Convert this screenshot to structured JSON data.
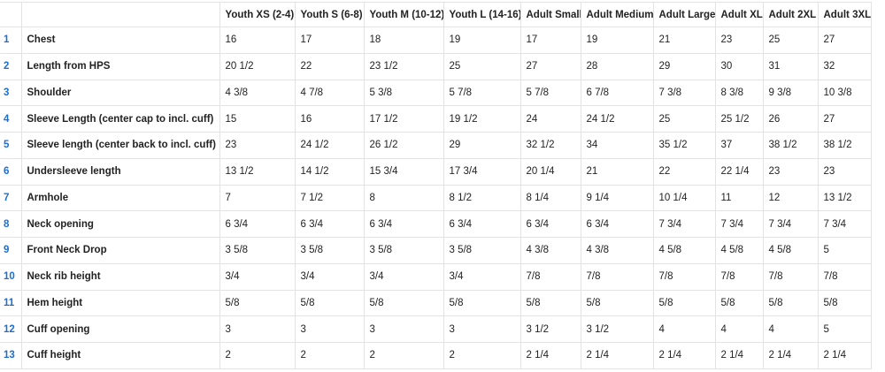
{
  "table": {
    "columns": [
      "Youth XS (2-4)",
      "Youth S (6-8)",
      "Youth M (10-12)",
      "Youth L (14-16)",
      "Adult Small",
      "Adult Medium",
      "Adult Large",
      "Adult XL",
      "Adult 2XL",
      "Adult 3XL"
    ],
    "rows": [
      {
        "index": 1,
        "label": "Chest",
        "values": [
          "16",
          "17",
          "18",
          "19",
          "17",
          "19",
          "21",
          "23",
          "25",
          "27"
        ]
      },
      {
        "index": 2,
        "label": "Length from HPS",
        "values": [
          "20 1/2",
          "22",
          "23 1/2",
          "25",
          "27",
          "28",
          "29",
          "30",
          "31",
          "32"
        ]
      },
      {
        "index": 3,
        "label": "Shoulder",
        "values": [
          "4 3/8",
          "4 7/8",
          "5 3/8",
          "5 7/8",
          "5 7/8",
          "6 7/8",
          "7 3/8",
          "8 3/8",
          "9 3/8",
          "10 3/8"
        ]
      },
      {
        "index": 4,
        "label": "Sleeve Length (center cap to incl. cuff)",
        "values": [
          "15",
          "16",
          "17 1/2",
          "19 1/2",
          "24",
          "24 1/2",
          "25",
          "25 1/2",
          "26",
          "27"
        ]
      },
      {
        "index": 5,
        "label": "Sleeve length (center back to incl. cuff)",
        "values": [
          "23",
          "24 1/2",
          "26 1/2",
          "29",
          "32 1/2",
          "34",
          "35 1/2",
          "37",
          "38 1/2",
          "38 1/2"
        ]
      },
      {
        "index": 6,
        "label": "Undersleeve length",
        "values": [
          "13 1/2",
          "14 1/2",
          "15 3/4",
          "17 3/4",
          "20 1/4",
          "21",
          "22",
          "22 1/4",
          "23",
          "23"
        ]
      },
      {
        "index": 7,
        "label": "Armhole",
        "values": [
          "7",
          "7 1/2",
          "8",
          "8 1/2",
          "8 1/4",
          "9 1/4",
          "10 1/4",
          "11",
          "12",
          "13 1/2"
        ]
      },
      {
        "index": 8,
        "label": "Neck opening",
        "values": [
          "6 3/4",
          "6 3/4",
          "6 3/4",
          "6 3/4",
          "6 3/4",
          "6 3/4",
          "7 3/4",
          "7 3/4",
          "7 3/4",
          "7 3/4"
        ]
      },
      {
        "index": 9,
        "label": "Front Neck Drop",
        "values": [
          "3 5/8",
          "3 5/8",
          "3 5/8",
          "3 5/8",
          "4 3/8",
          "4 3/8",
          "4 5/8",
          "4 5/8",
          "4 5/8",
          "5"
        ]
      },
      {
        "index": 10,
        "label": "Neck rib height",
        "values": [
          "3/4",
          "3/4",
          "3/4",
          "3/4",
          "7/8",
          "7/8",
          "7/8",
          "7/8",
          "7/8",
          "7/8"
        ]
      },
      {
        "index": 11,
        "label": "Hem height",
        "values": [
          "5/8",
          "5/8",
          "5/8",
          "5/8",
          "5/8",
          "5/8",
          "5/8",
          "5/8",
          "5/8",
          "5/8"
        ]
      },
      {
        "index": 12,
        "label": "Cuff opening",
        "values": [
          "3",
          "3",
          "3",
          "3",
          "3 1/2",
          "3 1/2",
          "4",
          "4",
          "4",
          "5"
        ]
      },
      {
        "index": 13,
        "label": "Cuff height",
        "values": [
          "2",
          "2",
          "2",
          "2",
          "2 1/4",
          "2 1/4",
          "2 1/4",
          "2 1/4",
          "2 1/4",
          "2 1/4"
        ]
      }
    ]
  }
}
